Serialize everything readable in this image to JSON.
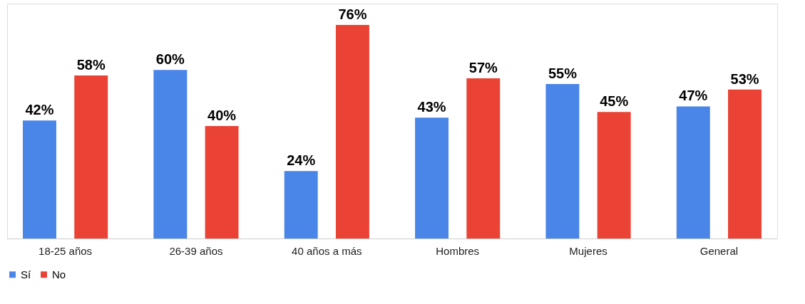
{
  "chart_data": {
    "type": "bar",
    "categories": [
      "18-25 años",
      "26-39 años",
      "40 años a más",
      "Hombres",
      "Mujeres",
      "General"
    ],
    "series": [
      {
        "name": "Sí",
        "color": "#4a86e8",
        "values": [
          42,
          60,
          24,
          43,
          55,
          47
        ],
        "value_labels": [
          "42%",
          "60%",
          "24%",
          "43%",
          "55%",
          "47%"
        ]
      },
      {
        "name": "No",
        "color": "#ea4335",
        "values": [
          58,
          40,
          76,
          57,
          45,
          53
        ],
        "value_labels": [
          "58%",
          "40%",
          "76%",
          "57%",
          "45%",
          "53%"
        ]
      }
    ],
    "legend": "bottom",
    "grid": false
  }
}
